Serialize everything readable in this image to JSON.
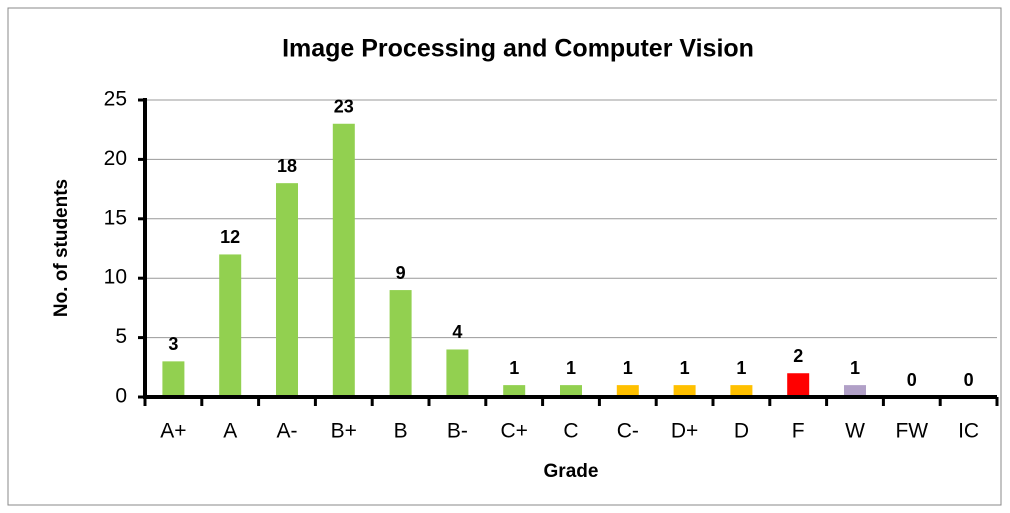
{
  "chart_data": {
    "type": "bar",
    "title": "Image Processing and Computer Vision",
    "x_label": "Grade",
    "y_label": "No. of students",
    "categories": [
      "A+",
      "A",
      "A-",
      "B+",
      "B",
      "B-",
      "C+",
      "C",
      "C-",
      "D+",
      "D",
      "F",
      "W",
      "FW",
      "IC"
    ],
    "values": [
      3,
      12,
      18,
      23,
      9,
      4,
      1,
      1,
      1,
      1,
      1,
      2,
      1,
      0,
      0
    ],
    "colors": [
      "#92d050",
      "#92d050",
      "#92d050",
      "#92d050",
      "#92d050",
      "#92d050",
      "#92d050",
      "#92d050",
      "#ffc000",
      "#ffc000",
      "#ffc000",
      "#ff0000",
      "#b1a0c7",
      "#b1a0c7",
      "#b1a0c7"
    ],
    "ylim": [
      0,
      25
    ],
    "yticks": [
      0,
      5,
      10,
      15,
      20,
      25
    ],
    "grid": true
  }
}
